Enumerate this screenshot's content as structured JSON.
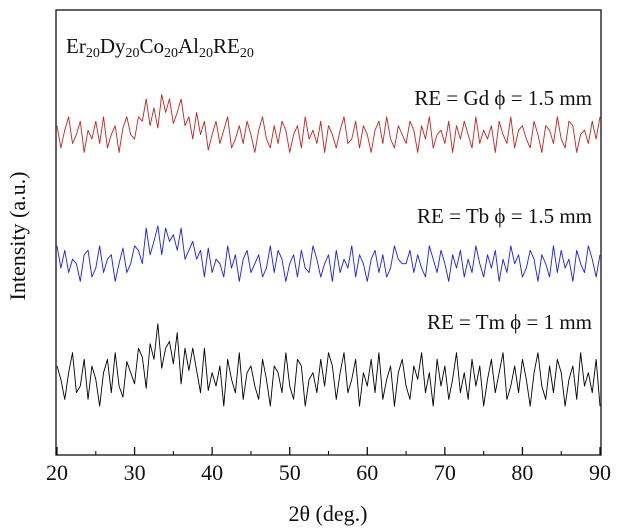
{
  "chart_data": {
    "type": "line",
    "formula": [
      "Er",
      "20",
      "Dy",
      "20",
      "Co",
      "20",
      "Al",
      "20",
      "RE",
      "20"
    ],
    "xlabel": "2θ (deg.)",
    "ylabel": "Intensity (a.u.)",
    "xlim": [
      20,
      90
    ],
    "ylim": [
      0,
      100
    ],
    "xticks": [
      20,
      30,
      40,
      50,
      60,
      70,
      80,
      90
    ],
    "xminorticks": [
      25,
      35,
      45,
      55,
      65,
      75,
      85
    ],
    "x": [
      20,
      20.5,
      21,
      21.5,
      22,
      22.5,
      23,
      23.5,
      24,
      24.5,
      25,
      25.5,
      26,
      26.5,
      27,
      27.5,
      28,
      28.5,
      29,
      29.5,
      30,
      30.5,
      31,
      31.5,
      32,
      32.5,
      33,
      33.5,
      34,
      34.5,
      35,
      35.5,
      36,
      36.5,
      37,
      37.5,
      38,
      38.5,
      39,
      39.5,
      40,
      40.5,
      41,
      41.5,
      42,
      42.5,
      43,
      43.5,
      44,
      44.5,
      45,
      45.5,
      46,
      46.5,
      47,
      47.5,
      48,
      48.5,
      49,
      49.5,
      50,
      50.5,
      51,
      51.5,
      52,
      52.5,
      53,
      53.5,
      54,
      54.5,
      55,
      55.5,
      56,
      56.5,
      57,
      57.5,
      58,
      58.5,
      59,
      59.5,
      60,
      60.5,
      61,
      61.5,
      62,
      62.5,
      63,
      63.5,
      64,
      64.5,
      65,
      65.5,
      66,
      66.5,
      67,
      67.5,
      68,
      68.5,
      69,
      69.5,
      70,
      70.5,
      71,
      71.5,
      72,
      72.5,
      73,
      73.5,
      74,
      74.5,
      75,
      75.5,
      76,
      76.5,
      77,
      77.5,
      78,
      78.5,
      79,
      79.5,
      80,
      80.5,
      81,
      81.5,
      82,
      82.5,
      83,
      83.5,
      84,
      84.5,
      85,
      85.5,
      86,
      86.5,
      87,
      87.5,
      88,
      88.5,
      89,
      89.5,
      90
    ],
    "series": [
      {
        "name": "RE = Gd  ϕ = 1.5 mm",
        "color": "#cc2020",
        "values": [
          74,
          69,
          73,
          76,
          70,
          72,
          75,
          68,
          73,
          71,
          75,
          70,
          76,
          69,
          72,
          74,
          68,
          73.5,
          76,
          72,
          71,
          76,
          75,
          80,
          74,
          78,
          73.5,
          81,
          77,
          80,
          74.5,
          77,
          80,
          74,
          76,
          71,
          77,
          72,
          75,
          68.5,
          72,
          75,
          70,
          73,
          76,
          69,
          71,
          74,
          70,
          75,
          72,
          68,
          73,
          76,
          71,
          69,
          74,
          70,
          75,
          73,
          68,
          72,
          74,
          69,
          76,
          71,
          73,
          70,
          75,
          68,
          74,
          72,
          69,
          73,
          76,
          70,
          71,
          75,
          69,
          74,
          72,
          68,
          73,
          75,
          70,
          76,
          71,
          69,
          74,
          72,
          70,
          75,
          73,
          68,
          74,
          71,
          76,
          69,
          72,
          73,
          70,
          75,
          68,
          74,
          71,
          75,
          72,
          69,
          76,
          70,
          73,
          71,
          74,
          68,
          75,
          72,
          70,
          76,
          69,
          73,
          74,
          71,
          69,
          75,
          72,
          68,
          74,
          73,
          70,
          76,
          71,
          69,
          75,
          74,
          68,
          72,
          73,
          70,
          75,
          71,
          76
        ]
      },
      {
        "name": "RE = Tb  ϕ = 1.5 mm",
        "color": "#1a1aff",
        "values": [
          47,
          42,
          46,
          41,
          44,
          43,
          39,
          45,
          46,
          40,
          42,
          47,
          41,
          44,
          45,
          39,
          43,
          46.5,
          41,
          43,
          47,
          46,
          43,
          51,
          45,
          48,
          51.5,
          45,
          51,
          48,
          49.5,
          46,
          51,
          44,
          46,
          48,
          44,
          46,
          40,
          46.5,
          41,
          44,
          43,
          40,
          47,
          42,
          45,
          39,
          44,
          46,
          41,
          43,
          45,
          40,
          42,
          47,
          41,
          46,
          44,
          39,
          43,
          45,
          40,
          46,
          42,
          41,
          47,
          44,
          40,
          43,
          45,
          39,
          46,
          41,
          44,
          42,
          47,
          40,
          45,
          43,
          39,
          44,
          46,
          41,
          45,
          40,
          42,
          47,
          44,
          43,
          43,
          46,
          41,
          45,
          42,
          40,
          47,
          44,
          41,
          46,
          43,
          39,
          45,
          42,
          46,
          40,
          44,
          41,
          47,
          43,
          40,
          45,
          42,
          46,
          39,
          44,
          41,
          47,
          43,
          45,
          40,
          42,
          46,
          44,
          39,
          45,
          43,
          40,
          47,
          41,
          46,
          42,
          44,
          39,
          46,
          43,
          41,
          47,
          44,
          40,
          45
        ]
      },
      {
        "name": "RE = Tm ϕ = 1 mm",
        "color": "#000000",
        "values": [
          20,
          17,
          12.5,
          18.5,
          23,
          14,
          15.5,
          21.5,
          12.5,
          20,
          17,
          11,
          18.5,
          21.5,
          14,
          23,
          15.5,
          13,
          21,
          18.5,
          16,
          24,
          22,
          15,
          25,
          21.5,
          29.5,
          19.5,
          24,
          25.5,
          20.5,
          27.5,
          16,
          24,
          19,
          24,
          19,
          14,
          24,
          14.5,
          18.5,
          15.5,
          20,
          11,
          21.5,
          17,
          14,
          23,
          12.5,
          18.5,
          20,
          15.5,
          12.5,
          21.5,
          17,
          11,
          20,
          18.5,
          14,
          23,
          15.5,
          12.5,
          21.5,
          20,
          11,
          17,
          18.5,
          14,
          21.5,
          15.5,
          23,
          20,
          12.5,
          18.5,
          23,
          14,
          17,
          21.5,
          11,
          18.5,
          15.5,
          21.5,
          14,
          23,
          12.5,
          17,
          20,
          11,
          18.5,
          21.5,
          15.5,
          12.5,
          20,
          17,
          23,
          14,
          18.5,
          11,
          21.5,
          15.5,
          20,
          12.5,
          17,
          23,
          14,
          18.5,
          12.5,
          21.5,
          15.5,
          20,
          11,
          17,
          21.5,
          14,
          18.5,
          23,
          12.5,
          15.5,
          20,
          14,
          21.5,
          17,
          11,
          18.5,
          23,
          15.5,
          12.5,
          20,
          14,
          21.5,
          18.5,
          11,
          17,
          20,
          12.5,
          23,
          15.5,
          18.5,
          14,
          21.5,
          11
        ]
      }
    ]
  }
}
